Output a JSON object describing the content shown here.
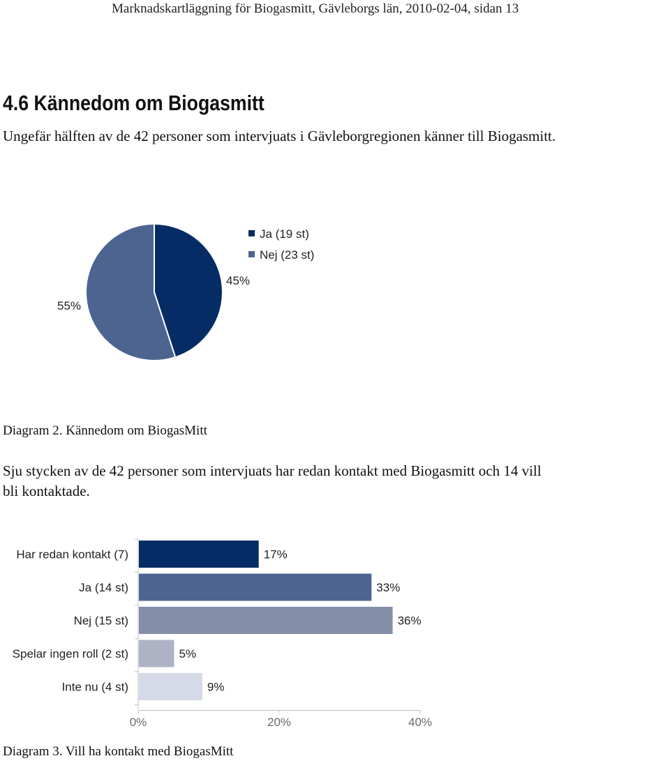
{
  "page": {
    "header": "Marknadskartläggning för Biogasmitt, Gävleborgs län, 2010-02-04, sidan 13",
    "section_title": "4.6  Kännedom om Biogasmitt",
    "intro_text": "Ungefär hälften av de 42 personer som intervjuats i Gävleborgregionen känner till Biogasmitt.",
    "caption_1": "Diagram 2. Kännedom om BiogasMitt",
    "paragraph_2_line1": "Sju stycken av de 42 personer som intervjuats har redan kontakt med Biogasmitt och 14 vill",
    "paragraph_2_line2": "bli kontaktade.",
    "caption_2": "Diagram 3. Vill ha kontakt med BiogasMitt"
  },
  "chart_data": [
    {
      "type": "pie",
      "title": "Kännedom om BiogasMitt",
      "slices": [
        {
          "label": "Ja (19 st)",
          "value": 45,
          "display": "45%",
          "color": "#062c66"
        },
        {
          "label": "Nej (23 st)",
          "value": 55,
          "display": "55%",
          "color": "#4d6491"
        }
      ],
      "legend_position": "top-right"
    },
    {
      "type": "bar",
      "orientation": "horizontal",
      "title": "Vill ha kontakt med BiogasMitt",
      "categories": [
        "Har redan kontakt (7)",
        "Ja (14 st)",
        "Nej (15 st)",
        "Spelar ingen roll (2 st)",
        "Inte nu (4 st)"
      ],
      "values": [
        17,
        33,
        36,
        5,
        9
      ],
      "value_labels": [
        "17%",
        "33%",
        "36%",
        "5%",
        "9%"
      ],
      "colors": [
        "#062c66",
        "#4d6491",
        "#838ea9",
        "#adb2c4",
        "#d5d9e8"
      ],
      "xlim": [
        0,
        40
      ],
      "x_ticks": [
        "0%",
        "20%",
        "40%"
      ],
      "grid": false
    }
  ]
}
